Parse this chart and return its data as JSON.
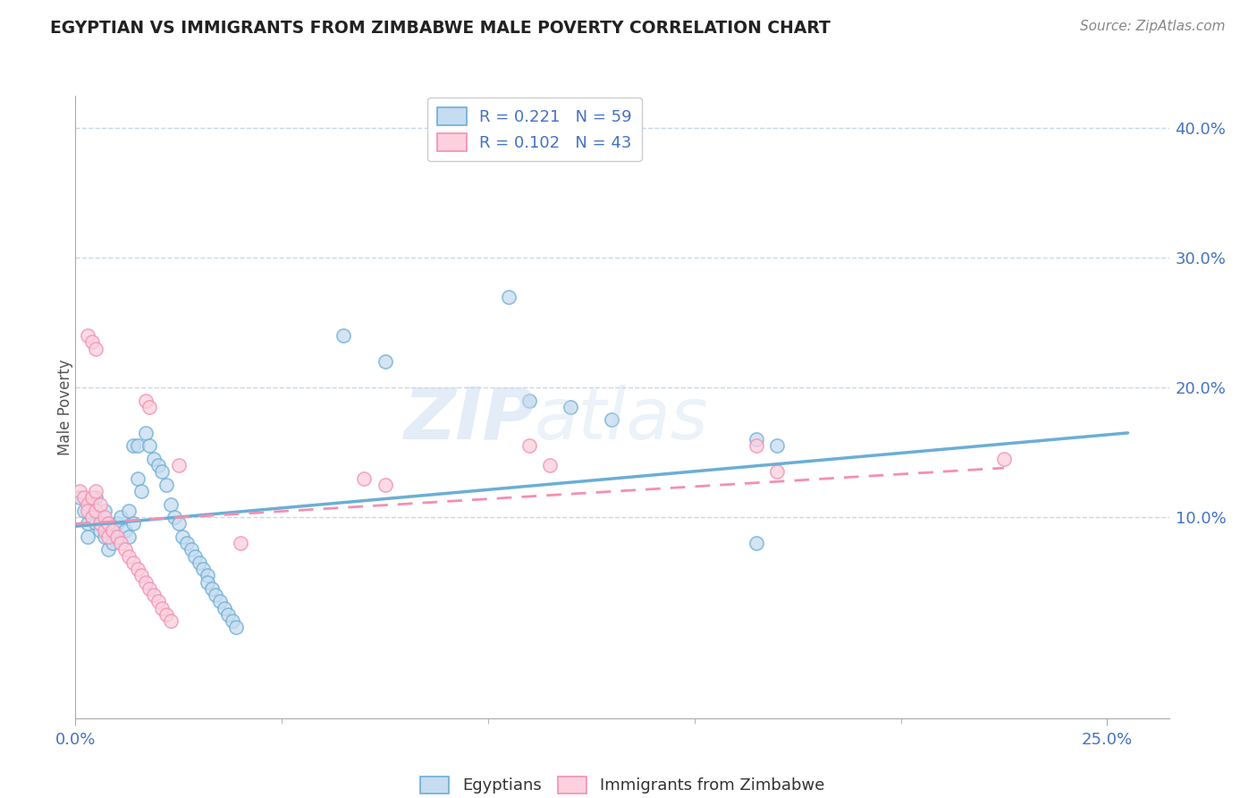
{
  "title": "EGYPTIAN VS IMMIGRANTS FROM ZIMBABWE MALE POVERTY CORRELATION CHART",
  "source": "Source: ZipAtlas.com",
  "xlim": [
    0.0,
    0.265
  ],
  "ylim": [
    -0.055,
    0.425
  ],
  "ylabel": "Male Poverty",
  "watermark_zip": "ZIP",
  "watermark_atlas": "atlas",
  "blue_color": "#6baed6",
  "pink_color": "#f48fb1",
  "blue_fill": "#c6dcf0",
  "pink_fill": "#fcd0dd",
  "blue_scatter": [
    [
      0.001,
      0.115
    ],
    [
      0.002,
      0.105
    ],
    [
      0.003,
      0.095
    ],
    [
      0.003,
      0.085
    ],
    [
      0.004,
      0.11
    ],
    [
      0.004,
      0.1
    ],
    [
      0.005,
      0.115
    ],
    [
      0.005,
      0.095
    ],
    [
      0.006,
      0.1
    ],
    [
      0.006,
      0.09
    ],
    [
      0.007,
      0.105
    ],
    [
      0.007,
      0.085
    ],
    [
      0.008,
      0.095
    ],
    [
      0.008,
      0.075
    ],
    [
      0.009,
      0.09
    ],
    [
      0.009,
      0.08
    ],
    [
      0.01,
      0.095
    ],
    [
      0.01,
      0.085
    ],
    [
      0.011,
      0.1
    ],
    [
      0.012,
      0.09
    ],
    [
      0.013,
      0.085
    ],
    [
      0.013,
      0.105
    ],
    [
      0.014,
      0.095
    ],
    [
      0.014,
      0.155
    ],
    [
      0.015,
      0.155
    ],
    [
      0.015,
      0.13
    ],
    [
      0.016,
      0.12
    ],
    [
      0.017,
      0.165
    ],
    [
      0.018,
      0.155
    ],
    [
      0.019,
      0.145
    ],
    [
      0.02,
      0.14
    ],
    [
      0.021,
      0.135
    ],
    [
      0.022,
      0.125
    ],
    [
      0.023,
      0.11
    ],
    [
      0.024,
      0.1
    ],
    [
      0.025,
      0.095
    ],
    [
      0.026,
      0.085
    ],
    [
      0.027,
      0.08
    ],
    [
      0.028,
      0.075
    ],
    [
      0.029,
      0.07
    ],
    [
      0.03,
      0.065
    ],
    [
      0.031,
      0.06
    ],
    [
      0.032,
      0.055
    ],
    [
      0.032,
      0.05
    ],
    [
      0.033,
      0.045
    ],
    [
      0.034,
      0.04
    ],
    [
      0.035,
      0.035
    ],
    [
      0.036,
      0.03
    ],
    [
      0.037,
      0.025
    ],
    [
      0.038,
      0.02
    ],
    [
      0.039,
      0.015
    ],
    [
      0.065,
      0.24
    ],
    [
      0.075,
      0.22
    ],
    [
      0.11,
      0.19
    ],
    [
      0.12,
      0.185
    ],
    [
      0.13,
      0.175
    ],
    [
      0.165,
      0.16
    ],
    [
      0.17,
      0.155
    ],
    [
      0.105,
      0.27
    ],
    [
      0.165,
      0.08
    ]
  ],
  "pink_scatter": [
    [
      0.001,
      0.12
    ],
    [
      0.002,
      0.115
    ],
    [
      0.003,
      0.11
    ],
    [
      0.003,
      0.105
    ],
    [
      0.004,
      0.115
    ],
    [
      0.004,
      0.1
    ],
    [
      0.005,
      0.12
    ],
    [
      0.005,
      0.105
    ],
    [
      0.006,
      0.11
    ],
    [
      0.006,
      0.095
    ],
    [
      0.007,
      0.1
    ],
    [
      0.007,
      0.09
    ],
    [
      0.008,
      0.095
    ],
    [
      0.008,
      0.085
    ],
    [
      0.009,
      0.09
    ],
    [
      0.01,
      0.085
    ],
    [
      0.011,
      0.08
    ],
    [
      0.012,
      0.075
    ],
    [
      0.013,
      0.07
    ],
    [
      0.014,
      0.065
    ],
    [
      0.015,
      0.06
    ],
    [
      0.016,
      0.055
    ],
    [
      0.017,
      0.05
    ],
    [
      0.018,
      0.045
    ],
    [
      0.019,
      0.04
    ],
    [
      0.02,
      0.035
    ],
    [
      0.021,
      0.03
    ],
    [
      0.022,
      0.025
    ],
    [
      0.023,
      0.02
    ],
    [
      0.003,
      0.24
    ],
    [
      0.004,
      0.235
    ],
    [
      0.005,
      0.23
    ],
    [
      0.017,
      0.19
    ],
    [
      0.018,
      0.185
    ],
    [
      0.025,
      0.14
    ],
    [
      0.07,
      0.13
    ],
    [
      0.075,
      0.125
    ],
    [
      0.11,
      0.155
    ],
    [
      0.115,
      0.14
    ],
    [
      0.165,
      0.155
    ],
    [
      0.17,
      0.135
    ],
    [
      0.225,
      0.145
    ],
    [
      0.04,
      0.08
    ]
  ],
  "blue_trend": {
    "x": [
      0.0,
      0.255
    ],
    "y": [
      0.093,
      0.165
    ]
  },
  "pink_trend": {
    "x": [
      0.0,
      0.225
    ],
    "y": [
      0.095,
      0.138
    ]
  },
  "bg_color": "#ffffff",
  "grid_color": "#c8d8e8",
  "tick_color": "#4472c4"
}
